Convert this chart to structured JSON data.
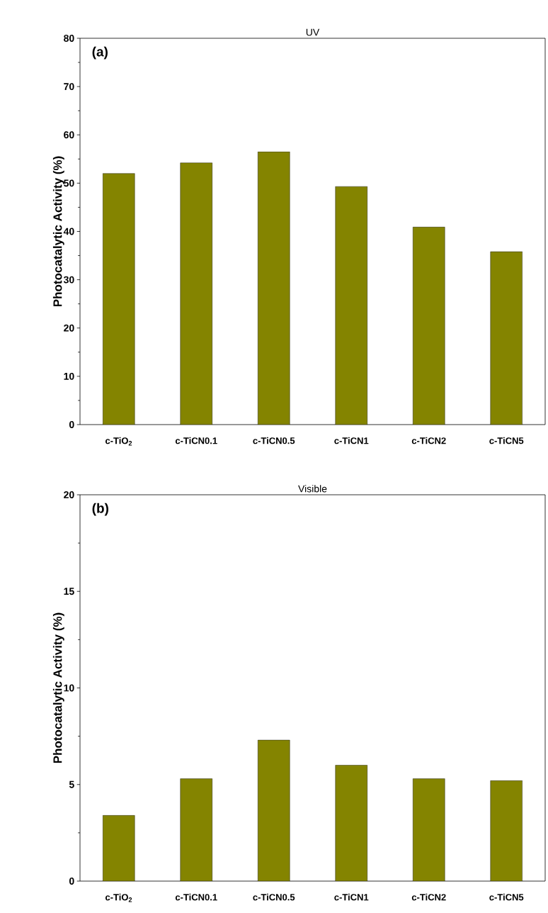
{
  "chart_data": [
    {
      "type": "bar",
      "title": "UV",
      "ylabel": "Photocatalytic Activity (%)",
      "categories": [
        "c-TiO$_{2}$",
        "c-TiCN0.1",
        "c-TiCN0.5",
        "c-TiCN1",
        "c-TiCN2",
        "c-TiCN5"
      ],
      "values": [
        52.0,
        54.2,
        56.5,
        49.3,
        40.9,
        35.8
      ],
      "color": "#848400",
      "ylim": [
        0,
        80
      ],
      "yticks": [
        0,
        10,
        20,
        30,
        40,
        50,
        60,
        70,
        80
      ],
      "annotations": [
        "(a)"
      ]
    },
    {
      "type": "bar",
      "title": "Visible",
      "ylabel": "Photocatalytic Activity (%)",
      "categories": [
        "c-TiO$_{2}$",
        "c-TiCN0.1",
        "c-TiCN0.5",
        "c-TiCN1",
        "c-TiCN2",
        "c-TiCN5"
      ],
      "values": [
        3.4,
        5.3,
        7.3,
        6.0,
        5.3,
        5.2
      ],
      "color": "#848400",
      "ylim": [
        0,
        20
      ],
      "yticks": [
        0,
        5,
        10,
        15,
        20
      ],
      "annotations": [
        "(b)"
      ]
    }
  ]
}
